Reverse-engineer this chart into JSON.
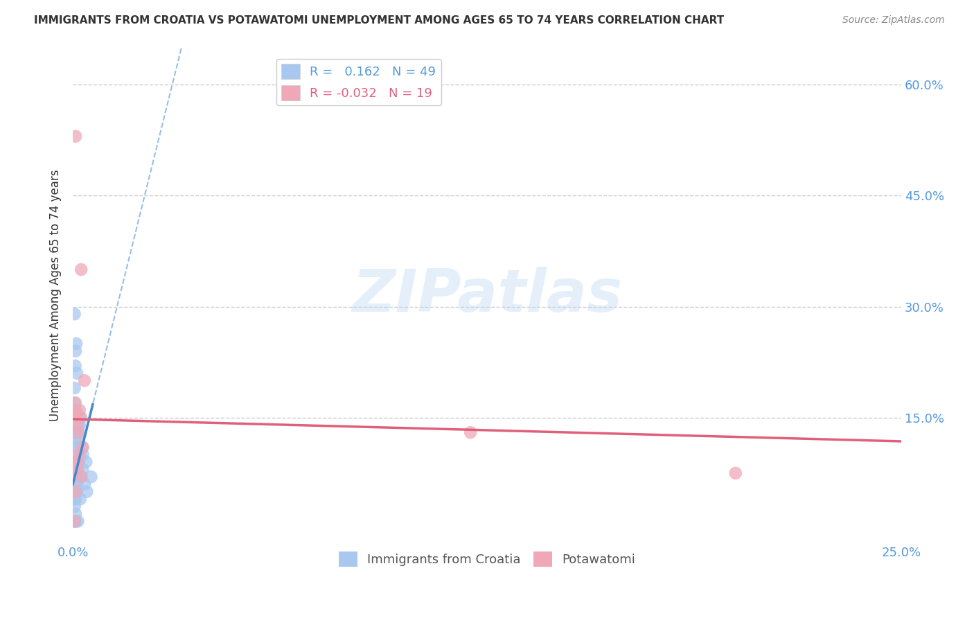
{
  "title": "IMMIGRANTS FROM CROATIA VS POTAWATOMI UNEMPLOYMENT AMONG AGES 65 TO 74 YEARS CORRELATION CHART",
  "source": "Source: ZipAtlas.com",
  "ylabel": "Unemployment Among Ages 65 to 74 years",
  "xlim": [
    0.0,
    0.25
  ],
  "ylim": [
    -0.02,
    0.65
  ],
  "xticks": [
    0.0,
    0.05,
    0.1,
    0.15,
    0.2,
    0.25
  ],
  "xticklabels": [
    "0.0%",
    "",
    "",
    "",
    "",
    "25.0%"
  ],
  "yticks": [
    0.0,
    0.15,
    0.3,
    0.45,
    0.6
  ],
  "yticklabels": [
    "",
    "15.0%",
    "30.0%",
    "45.0%",
    "60.0%"
  ],
  "croatia_color": "#a8c8f0",
  "croatia_line_color": "#4488cc",
  "potawatomi_color": "#f0a8b8",
  "potawatomi_line_color": "#e0607a",
  "R_croatia": 0.162,
  "N_croatia": 49,
  "R_potawatomi": -0.032,
  "N_potawatomi": 19,
  "watermark": "ZIPatlas",
  "background_color": "#ffffff",
  "grid_color": "#cccccc",
  "title_color": "#333333",
  "tick_color": "#5599dd",
  "croatia_x": [
    0.0005,
    0.0008,
    0.001,
    0.0005,
    0.0012,
    0.0008,
    0.0015,
    0.001,
    0.0018,
    0.002,
    0.0005,
    0.001,
    0.0008,
    0.0012,
    0.0015,
    0.0008,
    0.0025,
    0.0015,
    0.0008,
    0.002,
    0.0005,
    0.001,
    0.0018,
    0.0008,
    0.0012,
    0.003,
    0.0008,
    0.0022,
    0.0015,
    0.0008,
    0.0035,
    0.0025,
    0.0018,
    0.0008,
    0.0005,
    0.0042,
    0.003,
    0.002,
    0.0012,
    0.0008,
    0.0055,
    0.004,
    0.0028,
    0.0005,
    0.001,
    0.0018,
    0.0007,
    0.0012,
    0.0008
  ],
  "croatia_y": [
    0.03,
    0.01,
    0.05,
    0.04,
    0.06,
    0.07,
    0.08,
    0.09,
    0.09,
    0.1,
    0.01,
    0.05,
    0.12,
    0.11,
    0.01,
    0.04,
    0.15,
    0.13,
    0.06,
    0.07,
    0.08,
    0.16,
    0.14,
    0.05,
    0.09,
    0.1,
    0.17,
    0.04,
    0.11,
    0.13,
    0.06,
    0.07,
    0.12,
    0.01,
    0.19,
    0.05,
    0.08,
    0.14,
    0.21,
    0.24,
    0.07,
    0.09,
    0.11,
    0.29,
    0.25,
    0.13,
    0.22,
    0.05,
    0.02
  ],
  "potawatomi_x": [
    0.0005,
    0.0012,
    0.0008,
    0.002,
    0.0015,
    0.0005,
    0.0018,
    0.0025,
    0.0008,
    0.003,
    0.0012,
    0.002,
    0.0005,
    0.0015,
    0.0008,
    0.12,
    0.2,
    0.0035,
    0.0025
  ],
  "potawatomi_y": [
    0.155,
    0.14,
    0.53,
    0.16,
    0.13,
    0.17,
    0.1,
    0.35,
    0.05,
    0.11,
    0.08,
    0.15,
    0.01,
    0.09,
    0.155,
    0.13,
    0.075,
    0.2,
    0.07
  ],
  "cro_trend_m": 18.0,
  "cro_trend_b": 0.06,
  "pot_trend_m": -0.12,
  "pot_trend_b": 0.148
}
